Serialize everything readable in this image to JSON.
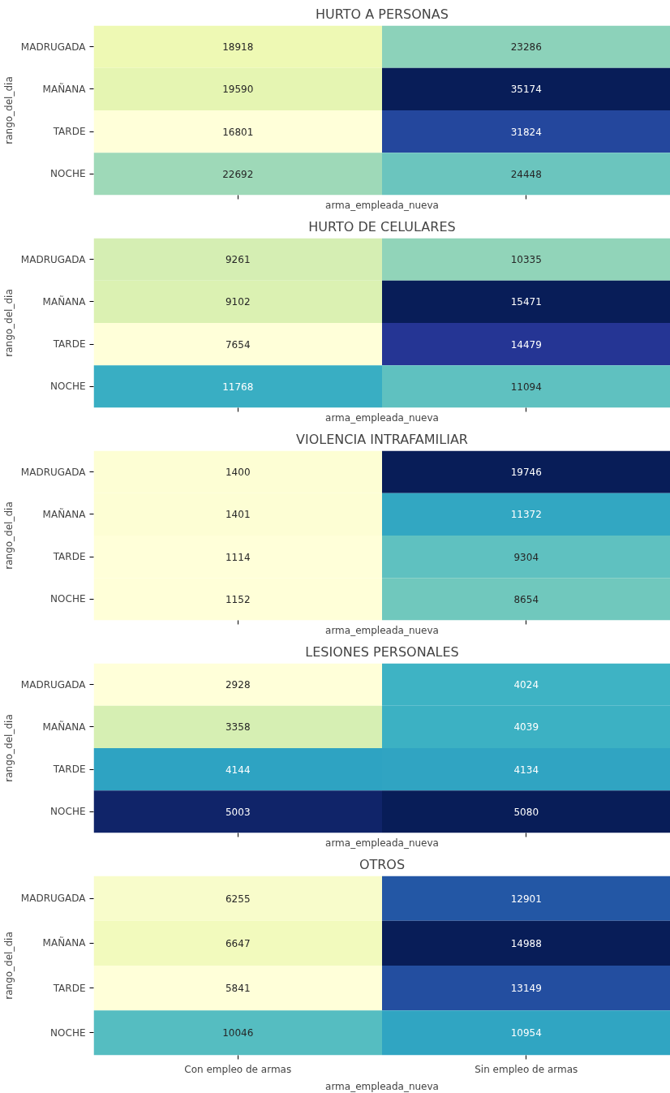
{
  "chart_data": [
    {
      "type": "heatmap",
      "title": "HURTO A PERSONAS",
      "xlabel": "arma_empleada_nueva",
      "ylabel": "rango_del_dia",
      "categories": [
        null,
        null
      ],
      "y_categories": [
        "MADRUGADA",
        "MAÑANA",
        "TARDE",
        "NOCHE"
      ],
      "cells": [
        [
          18918,
          23286
        ],
        [
          19590,
          35174
        ],
        [
          16801,
          31824
        ],
        [
          22692,
          24448
        ]
      ],
      "data_labels": true,
      "tick_labels": "y"
    },
    {
      "type": "heatmap",
      "title": "HURTO DE CELULARES",
      "xlabel": "arma_empleada_nueva",
      "ylabel": "rango_del_dia",
      "categories": [
        null,
        null
      ],
      "y_categories": [
        "MADRUGADA",
        "MAÑANA",
        "TARDE",
        "NOCHE"
      ],
      "cells": [
        [
          9261,
          10335
        ],
        [
          9102,
          15471
        ],
        [
          7654,
          14479
        ],
        [
          11768,
          11094
        ]
      ],
      "data_labels": true,
      "tick_labels": "y"
    },
    {
      "type": "heatmap",
      "title": "VIOLENCIA INTRAFAMILIAR",
      "xlabel": "arma_empleada_nueva",
      "ylabel": "rango_del_dia",
      "categories": [
        null,
        null
      ],
      "y_categories": [
        "MADRUGADA",
        "MAÑANA",
        "TARDE",
        "NOCHE"
      ],
      "cells": [
        [
          1400,
          19746
        ],
        [
          1401,
          11372
        ],
        [
          1114,
          9304
        ],
        [
          1152,
          8654
        ]
      ],
      "data_labels": true,
      "tick_labels": "y"
    },
    {
      "type": "heatmap",
      "title": "LESIONES PERSONALES",
      "xlabel": "arma_empleada_nueva",
      "ylabel": "rango_del_dia",
      "categories": [
        null,
        null
      ],
      "y_categories": [
        "MADRUGADA",
        "MAÑANA",
        "TARDE",
        "NOCHE"
      ],
      "cells": [
        [
          2928,
          4024
        ],
        [
          3358,
          4039
        ],
        [
          4144,
          4134
        ],
        [
          5003,
          5080
        ]
      ],
      "data_labels": true,
      "tick_labels": "y"
    },
    {
      "type": "heatmap",
      "title": "OTROS",
      "xlabel": "arma_empleada_nueva",
      "ylabel": "rango_del_dia",
      "categories": [
        "Con empleo de armas",
        "Sin empleo de armas"
      ],
      "y_categories": [
        "MADRUGADA",
        "MAÑANA",
        "TARDE",
        "NOCHE"
      ],
      "cells": [
        [
          6255,
          12901
        ],
        [
          6647,
          14988
        ],
        [
          5841,
          13149
        ],
        [
          10046,
          10954
        ]
      ],
      "data_labels": true
    }
  ]
}
